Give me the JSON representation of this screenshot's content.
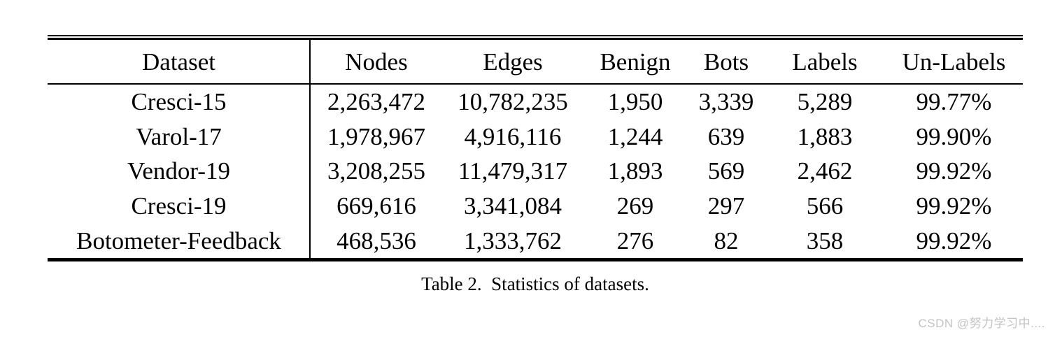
{
  "page": {
    "background": "#ffffff",
    "text_color": "#000000",
    "rule_color": "#000000"
  },
  "table": {
    "caption": "Table 2.  Statistics of datasets.",
    "columns": [
      "Dataset",
      "Nodes",
      "Edges",
      "Benign",
      "Bots",
      "Labels",
      "Un-Labels"
    ],
    "rows": [
      [
        "Cresci-15",
        "2,263,472",
        "10,782,235",
        "1,950",
        "3,339",
        "5,289",
        "99.77%"
      ],
      [
        "Varol-17",
        "1,978,967",
        "4,916,116",
        "1,244",
        "639",
        "1,883",
        "99.90%"
      ],
      [
        "Vendor-19",
        "3,208,255",
        "11,479,317",
        "1,893",
        "569",
        "2,462",
        "99.92%"
      ],
      [
        "Cresci-19",
        "669,616",
        "3,341,084",
        "269",
        "297",
        "566",
        "99.92%"
      ],
      [
        "Botometer-Feedback",
        "468,536",
        "1,333,762",
        "276",
        "82",
        "358",
        "99.92%"
      ]
    ]
  },
  "watermark": {
    "text": "CSDN @努力学习中....",
    "color": "#c3c3c3"
  }
}
